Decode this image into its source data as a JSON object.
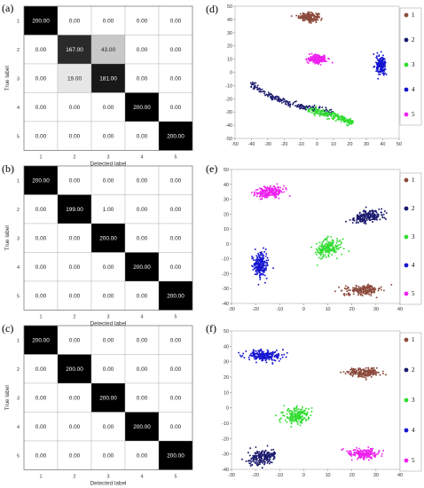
{
  "panel_labels": [
    "(a)",
    "(b)",
    "(c)",
    "(d)",
    "(e)",
    "(f)"
  ],
  "chart_data": [
    {
      "type": "heatmap",
      "panel": "(a)",
      "xlabel": "Detected label",
      "ylabel": "True label",
      "x_categories": [
        "1",
        "2",
        "3",
        "4",
        "5"
      ],
      "y_categories": [
        "1",
        "2",
        "3",
        "4",
        "5"
      ],
      "cell_labels": [
        [
          "200.00",
          "0.00",
          "0.00",
          "0.00",
          "0.00"
        ],
        [
          "0.00",
          "167.00",
          "43.00",
          "0.00",
          "0.00"
        ],
        [
          "0.00",
          "19.00",
          "181.00",
          "0.00",
          "0.00"
        ],
        [
          "0.00",
          "0.00",
          "0.00",
          "200.00",
          "0.00"
        ],
        [
          "0.00",
          "0.00",
          "0.00",
          "0.00",
          "200.00"
        ]
      ],
      "values": [
        [
          200,
          0,
          0,
          0,
          0
        ],
        [
          0,
          167,
          43,
          0,
          0
        ],
        [
          0,
          19,
          181,
          0,
          0
        ],
        [
          0,
          0,
          0,
          200,
          0
        ],
        [
          0,
          0,
          0,
          0,
          200
        ]
      ],
      "colormap": {
        "low": "#ffffff",
        "high": "#000000",
        "max": 200
      }
    },
    {
      "type": "heatmap",
      "panel": "(b)",
      "xlabel": "Detected label",
      "ylabel": "True label",
      "x_categories": [
        "1",
        "2",
        "3",
        "4",
        "5"
      ],
      "y_categories": [
        "1",
        "2",
        "3",
        "4",
        "5"
      ],
      "cell_labels": [
        [
          "200.00",
          "0.00",
          "0.00",
          "0.00",
          "0.00"
        ],
        [
          "0.00",
          "199.00",
          "1.00",
          "0.00",
          "0.00"
        ],
        [
          "0.00",
          "0.00",
          "200.00",
          "0.00",
          "0.00"
        ],
        [
          "0.00",
          "0.00",
          "0.00",
          "200.00",
          "0.00"
        ],
        [
          "0.00",
          "0.00",
          "0.00",
          "0.00",
          "200.00"
        ]
      ],
      "values": [
        [
          200,
          0,
          0,
          0,
          0
        ],
        [
          0,
          199,
          1,
          0,
          0
        ],
        [
          0,
          0,
          200,
          0,
          0
        ],
        [
          0,
          0,
          0,
          200,
          0
        ],
        [
          0,
          0,
          0,
          0,
          200
        ]
      ],
      "colormap": {
        "low": "#ffffff",
        "high": "#000000",
        "max": 200
      }
    },
    {
      "type": "heatmap",
      "panel": "(c)",
      "xlabel": "Detected label",
      "ylabel": "True label",
      "x_categories": [
        "1",
        "2",
        "3",
        "4",
        "5"
      ],
      "y_categories": [
        "1",
        "2",
        "3",
        "4",
        "5"
      ],
      "cell_labels": [
        [
          "200.00",
          "0.00",
          "0.00",
          "0.00",
          "0.00"
        ],
        [
          "0.00",
          "200.00",
          "0.00",
          "0.00",
          "0.00"
        ],
        [
          "0.00",
          "0.00",
          "200.00",
          "0.00",
          "0.00"
        ],
        [
          "0.00",
          "0.00",
          "0.00",
          "200.00",
          "0.00"
        ],
        [
          "0.00",
          "0.00",
          "0.00",
          "0.00",
          "200.00"
        ]
      ],
      "values": [
        [
          200,
          0,
          0,
          0,
          0
        ],
        [
          0,
          200,
          0,
          0,
          0
        ],
        [
          0,
          0,
          200,
          0,
          0
        ],
        [
          0,
          0,
          0,
          200,
          0
        ],
        [
          0,
          0,
          0,
          0,
          200
        ]
      ],
      "colormap": {
        "low": "#ffffff",
        "high": "#000000",
        "max": 200
      }
    },
    {
      "type": "scatter",
      "panel": "(d)",
      "xlim": [
        -50,
        50
      ],
      "ylim": [
        -50,
        50
      ],
      "xticks": [
        -50,
        -40,
        -30,
        -20,
        -10,
        0,
        10,
        20,
        30,
        40,
        50
      ],
      "yticks": [
        -50,
        -40,
        -30,
        -20,
        -10,
        0,
        10,
        20,
        30,
        40,
        50
      ],
      "legend": {
        "position": "right",
        "entries": [
          "1",
          "2",
          "3",
          "4",
          "5"
        ]
      },
      "series": [
        {
          "name": "1",
          "color": "#8b4a3c",
          "shape": "ellipse",
          "center": [
            -5,
            42
          ],
          "spread": [
            5.5,
            2.8
          ],
          "angle_deg": 0,
          "count": 200
        },
        {
          "name": "2",
          "color": "#1a1a6e",
          "shape": "curve",
          "path": [
            [
              -40,
              -9
            ],
            [
              -30,
              -17
            ],
            [
              -20,
              -22
            ],
            [
              -10,
              -26
            ],
            [
              0,
              -28
            ],
            [
              10,
              -31
            ]
          ],
          "thickness": 1.2,
          "count": 200
        },
        {
          "name": "3",
          "color": "#33dd33",
          "shape": "curve",
          "path": [
            [
              -5,
              -28
            ],
            [
              5,
              -31
            ],
            [
              15,
              -35
            ],
            [
              22,
              -38
            ]
          ],
          "thickness": 1.5,
          "count": 200
        },
        {
          "name": "4",
          "color": "#1515d0",
          "shape": "ellipse",
          "center": [
            39,
            5
          ],
          "spread": [
            2.6,
            6.0
          ],
          "angle_deg": 0,
          "count": 200
        },
        {
          "name": "5",
          "color": "#ee22ee",
          "shape": "ellipse",
          "center": [
            0,
            10
          ],
          "spread": [
            5.0,
            2.8
          ],
          "angle_deg": 0,
          "count": 200
        }
      ]
    },
    {
      "type": "scatter",
      "panel": "(e)",
      "xlim": [
        -30,
        40
      ],
      "ylim": [
        -40,
        50
      ],
      "xticks": [
        -30,
        -20,
        -10,
        0,
        10,
        20,
        30,
        40
      ],
      "yticks": [
        -40,
        -30,
        -20,
        -10,
        0,
        10,
        20,
        30,
        40,
        50
      ],
      "legend": {
        "position": "right",
        "entries": [
          "1",
          "2",
          "3",
          "4",
          "5"
        ]
      },
      "series": [
        {
          "name": "1",
          "color": "#8b4a3c",
          "shape": "ellipse",
          "center": [
            25,
            -31
          ],
          "spread": [
            7.0,
            2.8
          ],
          "angle_deg": 5,
          "count": 200
        },
        {
          "name": "2",
          "color": "#1a1a6e",
          "shape": "ellipse",
          "center": [
            26,
            18
          ],
          "spread": [
            6.5,
            3.5
          ],
          "angle_deg": 20,
          "count": 200
        },
        {
          "name": "3",
          "color": "#33dd33",
          "shape": "ellipse",
          "center": [
            10,
            -3
          ],
          "spread": [
            4.2,
            6.0
          ],
          "angle_deg": -25,
          "count": 200
        },
        {
          "name": "4",
          "color": "#1515d0",
          "shape": "ellipse",
          "center": [
            -18,
            -14
          ],
          "spread": [
            2.6,
            7.5
          ],
          "angle_deg": 0,
          "count": 200
        },
        {
          "name": "5",
          "color": "#ee22ee",
          "shape": "ellipse",
          "center": [
            -14,
            35
          ],
          "spread": [
            5.5,
            3.2
          ],
          "angle_deg": 10,
          "count": 200
        }
      ]
    },
    {
      "type": "scatter",
      "panel": "(f)",
      "xlim": [
        -30,
        40
      ],
      "ylim": [
        -40,
        50
      ],
      "xticks": [
        -30,
        -20,
        -10,
        0,
        10,
        20,
        30,
        40
      ],
      "yticks": [
        -40,
        -30,
        -20,
        -10,
        0,
        10,
        20,
        30,
        40,
        50
      ],
      "legend": {
        "position": "right",
        "entries": [
          "1",
          "2",
          "3",
          "4",
          "5"
        ]
      },
      "series": [
        {
          "name": "1",
          "color": "#8b4a3c",
          "shape": "ellipse",
          "center": [
            25,
            23
          ],
          "spread": [
            6.5,
            2.6
          ],
          "angle_deg": 0,
          "count": 200
        },
        {
          "name": "2",
          "color": "#1a1a6e",
          "shape": "ellipse",
          "center": [
            -17,
            -32
          ],
          "spread": [
            5.5,
            4.0
          ],
          "angle_deg": 30,
          "count": 200
        },
        {
          "name": "3",
          "color": "#33dd33",
          "shape": "ellipse",
          "center": [
            -3,
            -5
          ],
          "spread": [
            5.0,
            4.5
          ],
          "angle_deg": 35,
          "count": 200
        },
        {
          "name": "4",
          "color": "#1515d0",
          "shape": "ellipse",
          "center": [
            -17,
            34
          ],
          "spread": [
            6.5,
            3.0
          ],
          "angle_deg": -5,
          "count": 200
        },
        {
          "name": "5",
          "color": "#ee22ee",
          "shape": "ellipse",
          "center": [
            25,
            -30
          ],
          "spread": [
            6.0,
            2.8
          ],
          "angle_deg": 0,
          "count": 200
        }
      ]
    }
  ]
}
